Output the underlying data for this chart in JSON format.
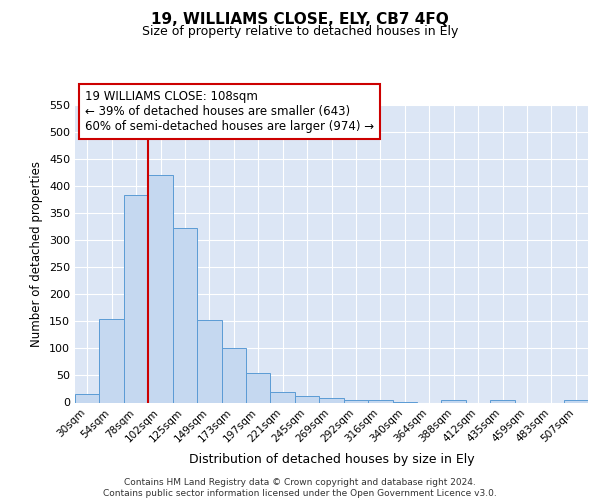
{
  "title1": "19, WILLIAMS CLOSE, ELY, CB7 4FQ",
  "title2": "Size of property relative to detached houses in Ely",
  "xlabel": "Distribution of detached houses by size in Ely",
  "ylabel": "Number of detached properties",
  "categories": [
    "30sqm",
    "54sqm",
    "78sqm",
    "102sqm",
    "125sqm",
    "149sqm",
    "173sqm",
    "197sqm",
    "221sqm",
    "245sqm",
    "269sqm",
    "292sqm",
    "316sqm",
    "340sqm",
    "364sqm",
    "388sqm",
    "412sqm",
    "435sqm",
    "459sqm",
    "483sqm",
    "507sqm"
  ],
  "values": [
    15,
    155,
    383,
    420,
    323,
    153,
    100,
    55,
    20,
    12,
    8,
    4,
    4,
    1,
    0,
    5,
    0,
    5,
    0,
    0,
    4
  ],
  "bar_color": "#c5d8f0",
  "bar_edge_color": "#5b9bd5",
  "background_color": "#dce6f5",
  "grid_color": "#ffffff",
  "vline_x": 3,
  "vline_color": "#cc0000",
  "annotation_text": "19 WILLIAMS CLOSE: 108sqm\n← 39% of detached houses are smaller (643)\n60% of semi-detached houses are larger (974) →",
  "annotation_box_color": "#ffffff",
  "annotation_box_edge_color": "#cc0000",
  "footer_text": "Contains HM Land Registry data © Crown copyright and database right 2024.\nContains public sector information licensed under the Open Government Licence v3.0.",
  "ylim": [
    0,
    550
  ],
  "yticks": [
    0,
    50,
    100,
    150,
    200,
    250,
    300,
    350,
    400,
    450,
    500,
    550
  ]
}
